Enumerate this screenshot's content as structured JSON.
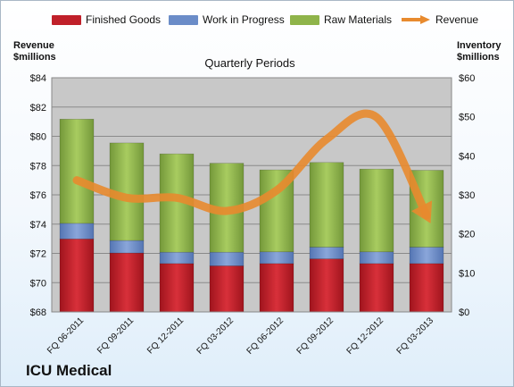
{
  "legend": {
    "finished_goods": "Finished Goods",
    "wip": "Work in Progress",
    "raw_materials": "Raw Materials",
    "revenue": "Revenue"
  },
  "left_axis_title": {
    "line1": "Revenue",
    "line2": "$millions"
  },
  "right_axis_title": {
    "line1": "Inventory",
    "line2": "$millions"
  },
  "company": "ICU Medical",
  "colors": {
    "finished_goods": "#c0202a",
    "wip": "#6b8cc8",
    "raw_materials": "#8fb44a",
    "revenue": "#e88a2e",
    "plot_bg": "#c8c8c8"
  },
  "chart_data": {
    "type": "bar",
    "stacked": true,
    "title": "Quarterly Periods",
    "categories": [
      "FQ 06-2011",
      "FQ 09-2011",
      "FQ 12-2011",
      "FQ 03-2012",
      "FQ 06-2012",
      "FQ 09-2012",
      "FQ 12-2012",
      "FQ 03-2013"
    ],
    "series": [
      {
        "name": "Finished Goods",
        "axis": "right",
        "values": [
          18.7,
          15.1,
          12.4,
          11.8,
          12.4,
          13.6,
          12.4,
          12.4
        ]
      },
      {
        "name": "Work in Progress",
        "axis": "right",
        "values": [
          4.0,
          3.2,
          2.9,
          3.5,
          3.0,
          3.0,
          3.0,
          4.2
        ]
      },
      {
        "name": "Raw Materials",
        "axis": "right",
        "values": [
          26.7,
          25.0,
          25.2,
          22.8,
          21.0,
          21.7,
          21.2,
          19.7
        ]
      },
      {
        "name": "Revenue",
        "type": "line",
        "axis": "left",
        "values": [
          77.0,
          75.8,
          75.8,
          74.9,
          76.3,
          79.8,
          81.3,
          74.6
        ]
      }
    ],
    "left_axis": {
      "ylim": [
        68,
        84
      ],
      "ticks": [
        "$68",
        "$70",
        "$72",
        "$74",
        "$76",
        "$78",
        "$80",
        "$82",
        "$84"
      ]
    },
    "right_axis": {
      "ylim": [
        0,
        60
      ],
      "ticks": [
        "$0",
        "$10",
        "$20",
        "$30",
        "$40",
        "$50",
        "$60"
      ]
    },
    "grid": true,
    "legend_position": "top"
  }
}
